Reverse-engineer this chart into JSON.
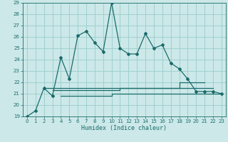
{
  "xlabel": "Humidex (Indice chaleur)",
  "bg_color": "#cce8e8",
  "grid_color": "#99cccc",
  "line_color": "#1a6b6b",
  "xlim": [
    -0.5,
    23.5
  ],
  "ylim": [
    19,
    29
  ],
  "xticks": [
    0,
    1,
    2,
    3,
    4,
    5,
    6,
    7,
    8,
    9,
    10,
    11,
    12,
    13,
    14,
    15,
    16,
    17,
    18,
    19,
    20,
    21,
    22,
    23
  ],
  "yticks": [
    19,
    20,
    21,
    22,
    23,
    24,
    25,
    26,
    27,
    28,
    29
  ],
  "main_curve_x": [
    0,
    1,
    2,
    3,
    4,
    5,
    6,
    7,
    8,
    9,
    10,
    11,
    12,
    13,
    14,
    15,
    16,
    17,
    18,
    19,
    20,
    21,
    22,
    23
  ],
  "main_curve_y": [
    19,
    19.5,
    21.5,
    20.8,
    24.2,
    22.3,
    26.1,
    26.5,
    25.5,
    24.7,
    29,
    25,
    24.5,
    24.5,
    26.3,
    25,
    25.3,
    23.7,
    23.2,
    22.3,
    21.2,
    21.2,
    21.2,
    21.0
  ],
  "step_lines": [
    {
      "x": [
        2,
        3,
        4,
        5,
        6,
        7,
        8,
        9,
        10,
        11,
        12,
        13,
        14,
        15,
        16,
        17,
        18,
        18,
        19,
        20,
        21
      ],
      "y": [
        21.5,
        21.5,
        21.5,
        21.5,
        21.5,
        21.5,
        21.5,
        21.5,
        21.5,
        21.5,
        21.5,
        21.5,
        21.5,
        21.5,
        21.5,
        21.5,
        21.5,
        22.0,
        22.0,
        22.0,
        22.0
      ]
    },
    {
      "x": [
        3,
        4,
        5,
        6,
        7,
        8,
        9,
        10,
        11,
        12,
        13,
        14,
        15,
        16,
        17,
        18,
        19,
        20,
        21,
        22
      ],
      "y": [
        21.3,
        21.3,
        21.3,
        21.3,
        21.3,
        21.3,
        21.3,
        21.3,
        21.3,
        21.5,
        21.5,
        21.5,
        21.5,
        21.5,
        21.5,
        21.5,
        21.5,
        21.5,
        21.5,
        21.5
      ]
    },
    {
      "x": [
        4,
        5,
        6,
        7,
        8,
        9,
        10,
        11,
        12,
        13,
        14,
        15,
        16,
        17,
        18,
        19,
        20,
        21,
        22,
        23
      ],
      "y": [
        20.8,
        20.8,
        20.8,
        20.8,
        20.8,
        20.8,
        21.0,
        21.0,
        21.0,
        21.0,
        21.0,
        21.0,
        21.0,
        21.0,
        21.0,
        21.0,
        21.0,
        21.0,
        21.0,
        21.0
      ]
    }
  ]
}
